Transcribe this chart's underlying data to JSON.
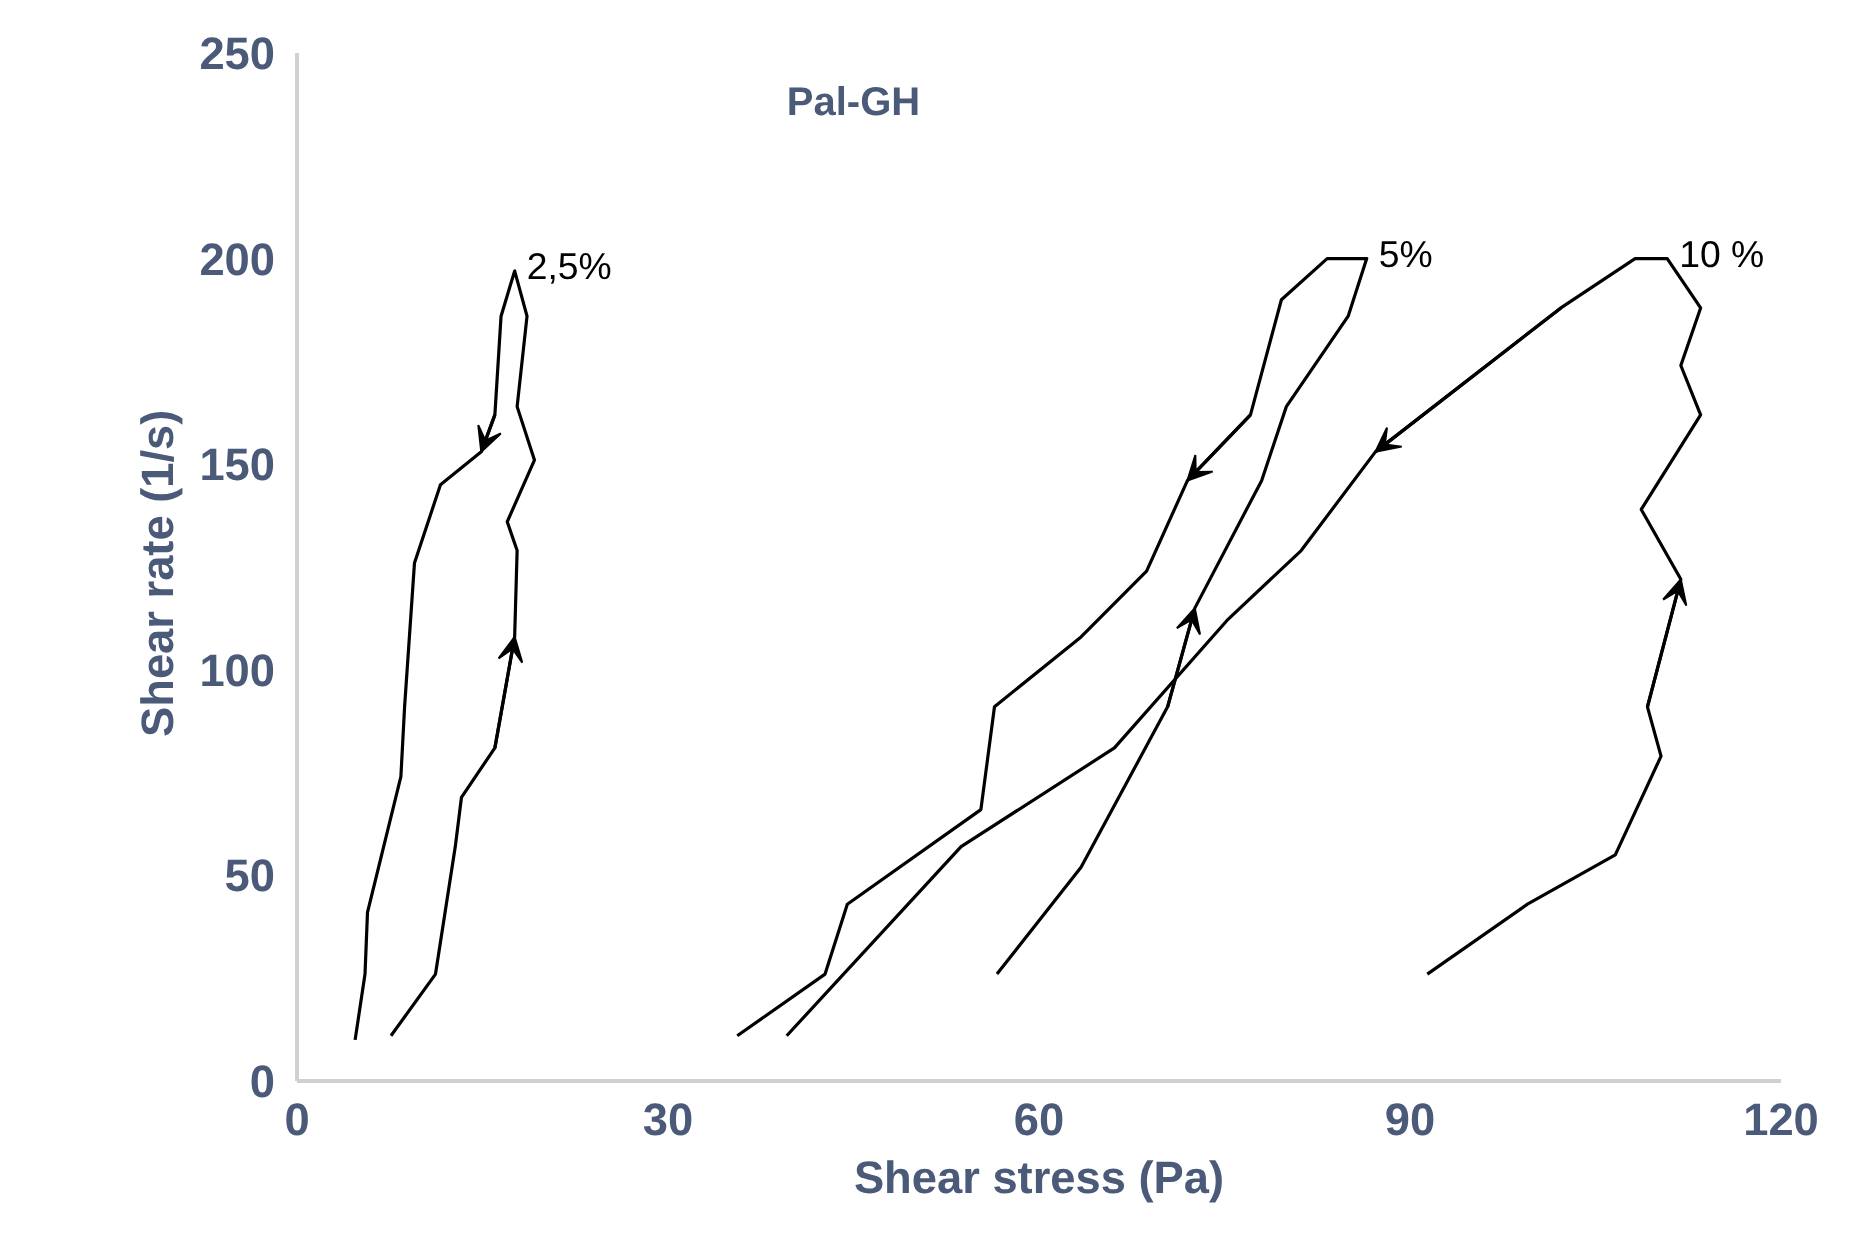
{
  "chart_data": {
    "type": "line",
    "title": "Pal-GH",
    "xlabel": "Shear stress (Pa)",
    "ylabel": "Shear rate  (1/s)",
    "xlim": [
      0,
      120
    ],
    "ylim": [
      0,
      250
    ],
    "xticks": [
      0,
      30,
      60,
      90,
      120
    ],
    "yticks": [
      0,
      50,
      100,
      150,
      200,
      250
    ],
    "grid": false,
    "marker": "none",
    "line_style": "solid",
    "series": [
      {
        "name": "2,5%",
        "color": "#000000",
        "x": [
          7.6,
          11.2,
          12.8,
          13.3,
          16,
          17.6,
          17.8,
          17,
          19.2,
          17.8,
          18.6,
          17.6,
          16.5,
          16,
          14.9,
          11.6,
          9.5,
          8.7,
          8.4,
          5.7,
          5.5,
          4.7
        ],
        "values": [
          11,
          26,
          57,
          69,
          81,
          108,
          129,
          136,
          151,
          164,
          186,
          197,
          186,
          162,
          153,
          145,
          126,
          91,
          74,
          41,
          26,
          10
        ]
      },
      {
        "name": "5%",
        "color": "#000000",
        "x": [
          56.6,
          63.4,
          70.4,
          72.6,
          78,
          80,
          85,
          86.5,
          83.3,
          79.6,
          77.1,
          72,
          68.7,
          63.4,
          56.4,
          55.3,
          44.5,
          42.7,
          35.6
        ],
        "values": [
          26,
          52,
          91,
          115,
          146,
          164,
          186,
          200,
          200,
          190,
          162,
          146,
          124,
          108,
          91,
          66,
          43,
          26,
          11
        ]
      },
      {
        "name": "10 %",
        "color": "#000000",
        "x": [
          91.4,
          99.5,
          106.6,
          110.3,
          109.2,
          111.9,
          108.7,
          113.5,
          111.9,
          113.5,
          110.8,
          108.2,
          102.2,
          87.2,
          81.2,
          75.2,
          66.1,
          53.7,
          39.6
        ],
        "values": [
          26,
          43,
          55,
          79,
          91,
          122,
          139,
          162,
          174,
          188,
          200,
          200,
          188,
          153,
          129,
          112,
          81,
          57,
          11
        ]
      }
    ]
  }
}
